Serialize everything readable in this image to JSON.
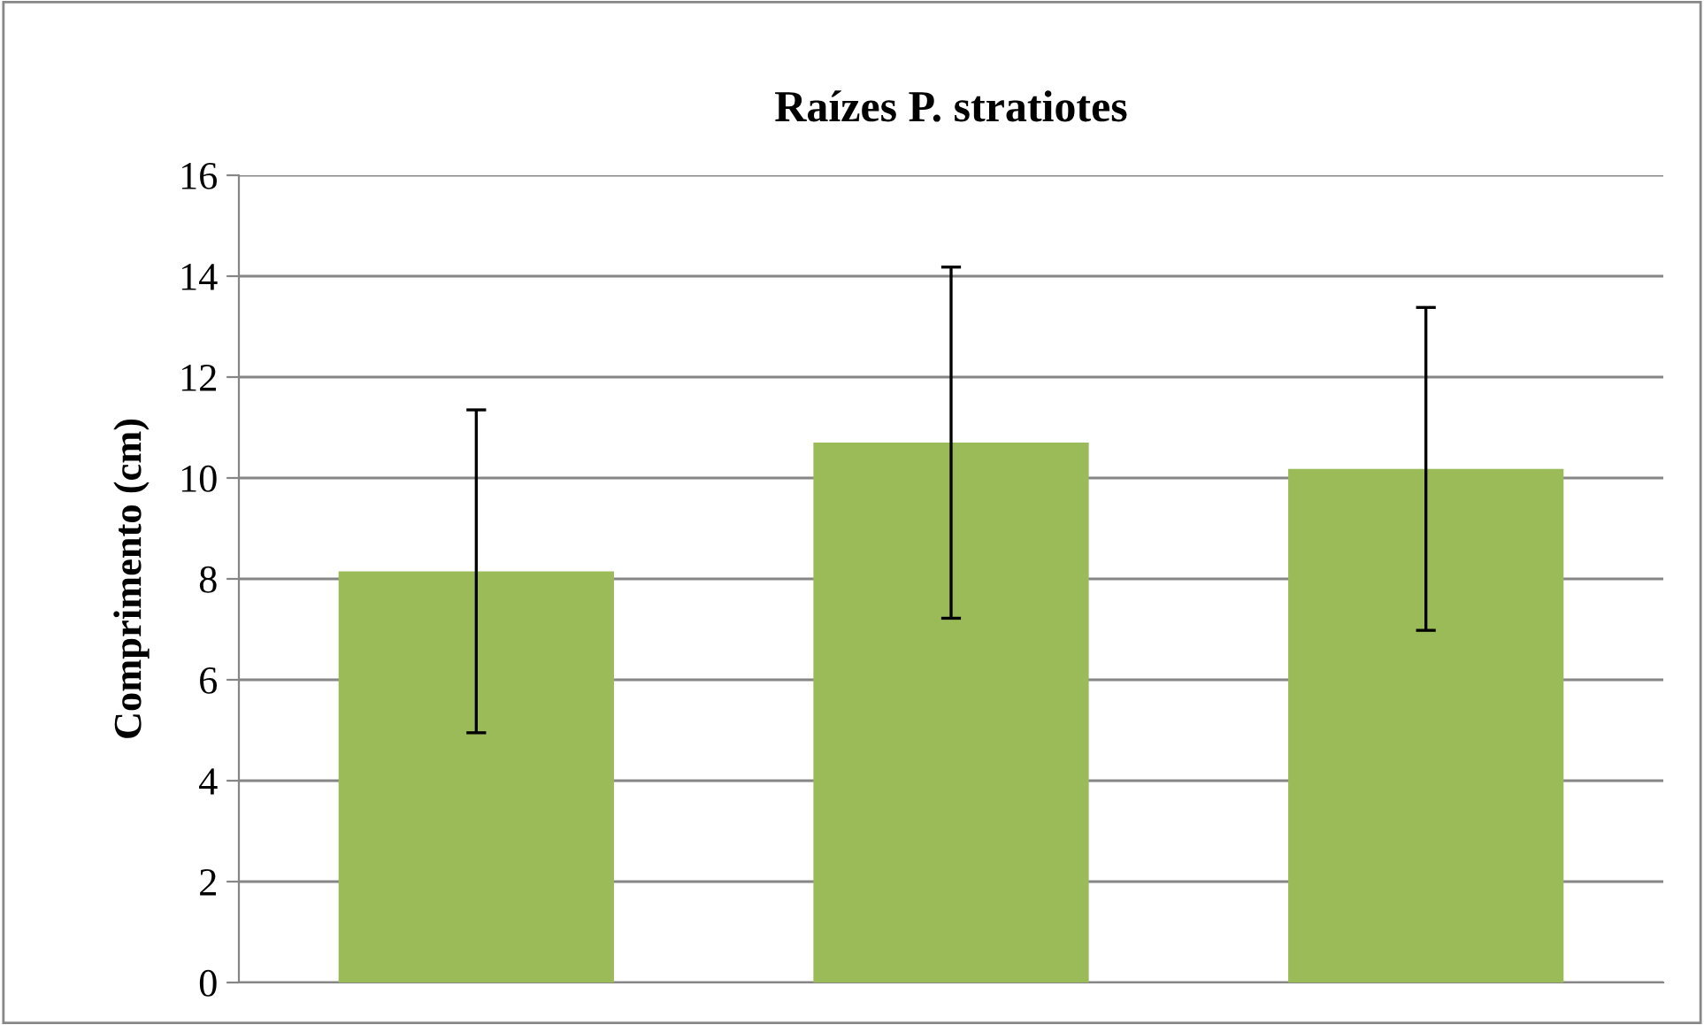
{
  "chart_data": {
    "type": "bar",
    "title": "Raízes P. stratiotes",
    "ylabel": "Comprimento (cm)",
    "categories": [
      null,
      null,
      null
    ],
    "values": [
      8.15,
      10.7,
      10.18
    ],
    "errors": [
      3.2,
      3.48,
      3.2
    ],
    "color": "#9bbb59",
    "ylim": [
      0,
      16
    ],
    "yticks": [
      0,
      2,
      4,
      6,
      8,
      10,
      12,
      14,
      16
    ],
    "grid": "y"
  }
}
